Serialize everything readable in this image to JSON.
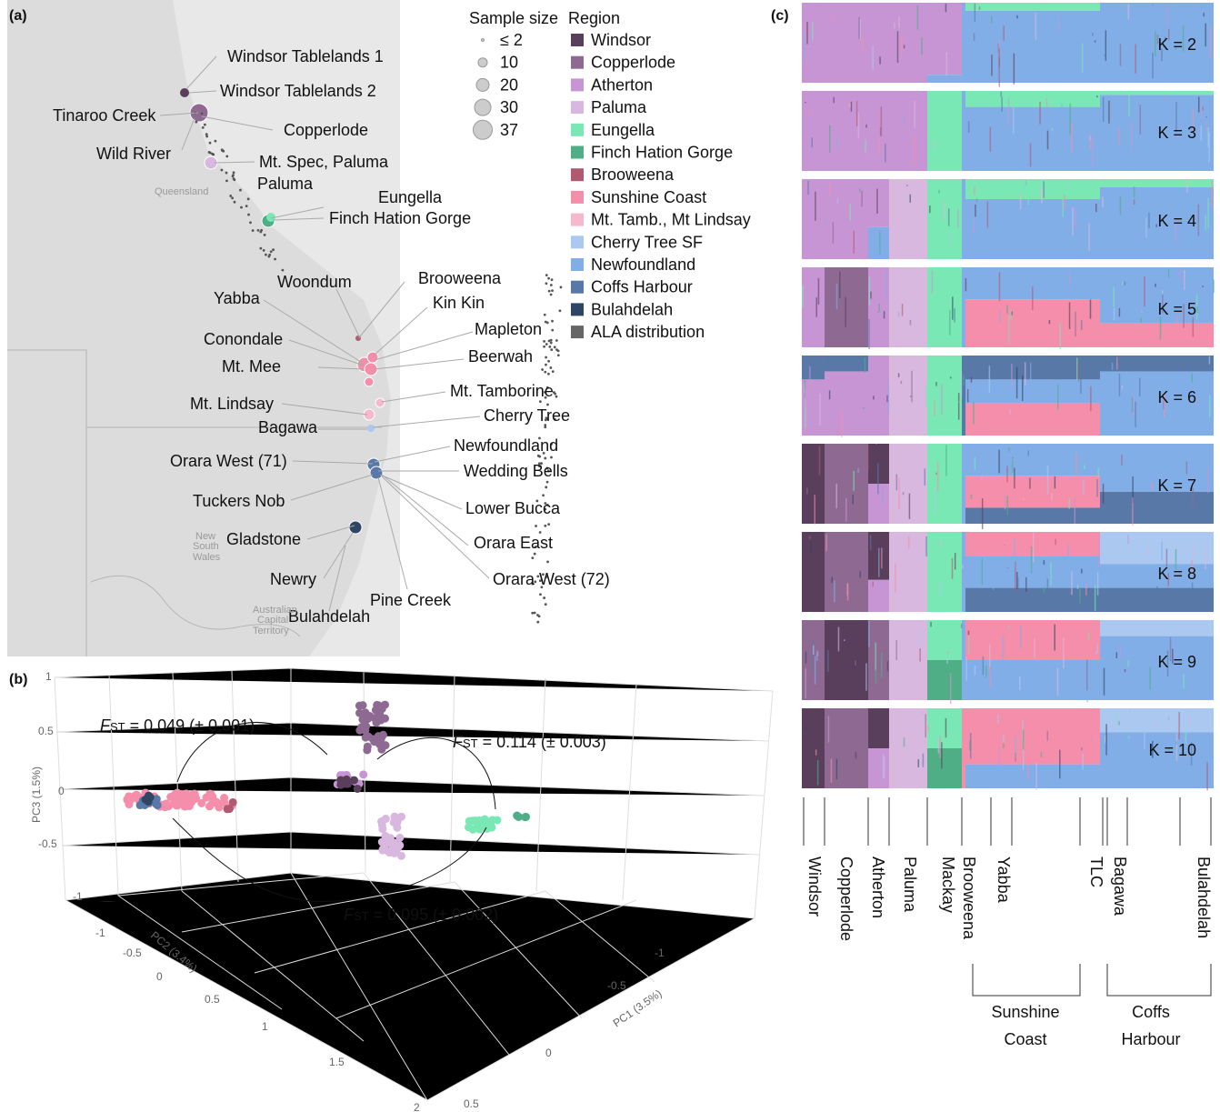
{
  "panel_a": {
    "label": "(a)",
    "size_legend": {
      "title": "Sample size",
      "entries": [
        "≤ 2",
        "10",
        "20",
        "30",
        "37"
      ]
    },
    "region_legend": {
      "title": "Region",
      "entries": [
        {
          "name": "Windsor",
          "color": "#5a3f5c"
        },
        {
          "name": "Copperlode",
          "color": "#8e6a93"
        },
        {
          "name": "Atherton",
          "color": "#c895d4"
        },
        {
          "name": "Paluma",
          "color": "#d9b8e0"
        },
        {
          "name": "Eungella",
          "color": "#7ae8b4"
        },
        {
          "name": "Finch Hation Gorge",
          "color": "#4fae86"
        },
        {
          "name": "Brooweena",
          "color": "#b05a72"
        },
        {
          "name": "Sunshine Coast",
          "color": "#f48eaa"
        },
        {
          "name": "Mt. Tamb., Mt Lindsay",
          "color": "#f6b8cc"
        },
        {
          "name": "Cherry Tree SF",
          "color": "#aac8f0"
        },
        {
          "name": "Newfoundland",
          "color": "#82aee8"
        },
        {
          "name": "Coffs Harbour",
          "color": "#5878a8"
        },
        {
          "name": "Bulahdelah",
          "color": "#2f4566"
        },
        {
          "name": "ALA distribution",
          "color": "#666666"
        }
      ]
    },
    "sites": [
      "Windsor Tablelands 1",
      "Windsor Tablelands 2",
      "Tinaroo Creek",
      "Copperlode",
      "Wild River",
      "Mt. Spec, Paluma",
      "Paluma",
      "Eungella",
      "Finch Hation Gorge",
      "Brooweena",
      "Woondum",
      "Kin Kin",
      "Yabba",
      "Mapleton",
      "Conondale",
      "Beerwah",
      "Mt. Mee",
      "Mt. Tamborine",
      "Mt. Lindsay",
      "Cherry Tree",
      "Bagawa",
      "Newfoundland",
      "Orara West (71)",
      "Wedding Bells",
      "Tuckers Nob",
      "Lower Bucca",
      "Gladstone",
      "Orara East",
      "Orara West (72)",
      "Newry",
      "Pine Creek",
      "Bulahdelah"
    ],
    "map_labels": [
      "Queensland",
      "New",
      "South",
      "Wales",
      "Australian",
      "Capital",
      "Territory"
    ]
  },
  "panel_b": {
    "label": "(b)",
    "pc3": {
      "title": "PC3 (1.5%)",
      "ticks": [
        1,
        0.5,
        0,
        -0.5,
        -1
      ]
    },
    "pc2": {
      "title": "PC2 (3.4%)",
      "ticks": [
        -1,
        -0.5,
        0,
        0.5,
        1,
        1.5,
        2
      ]
    },
    "pc1": {
      "title": "PC1 (3.5%)",
      "ticks": [
        -1,
        -0.5,
        0,
        0.5
      ]
    },
    "fst": [
      {
        "f": "F",
        "sub": "ST",
        "text": " = 0.049 (± 0.001)"
      },
      {
        "f": "F",
        "sub": "ST",
        "text": " = 0.114 (± 0.003)"
      },
      {
        "f": "F",
        "sub": "ST",
        "text": " = 0.095 (± 0.002)"
      }
    ]
  },
  "panel_c": {
    "label": "(c)",
    "k_labels": [
      "K = 2",
      "K = 3",
      "K = 4",
      "K = 5",
      "K = 6",
      "K = 7",
      "K = 8",
      "K = 9",
      "K = 10"
    ],
    "populations": [
      "Windsor",
      "Copperlode",
      "Atherton",
      "Paluma",
      "Mackay",
      "Brooweena",
      "Yabba",
      "TLC",
      "Bagawa",
      "Bulahdelah"
    ],
    "groups": [
      [
        "Sunshine",
        "Coast"
      ],
      [
        "Coffs",
        "Harbour"
      ]
    ]
  }
}
